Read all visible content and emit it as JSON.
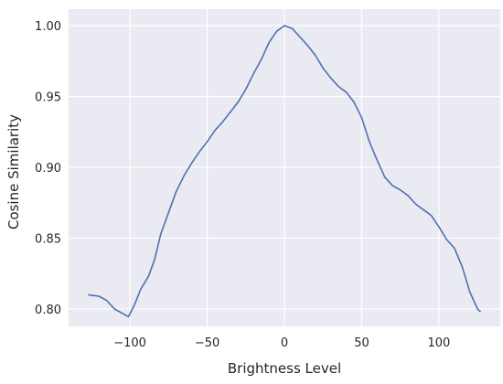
{
  "chart_data": {
    "type": "line",
    "x_label": "Brightness Level",
    "y_label": "Cosine Similarity",
    "x": [
      -127,
      -120,
      -115,
      -110,
      -105,
      -101,
      -97,
      -93,
      -88,
      -84,
      -80,
      -75,
      -70,
      -65,
      -60,
      -55,
      -50,
      -45,
      -40,
      -35,
      -30,
      -25,
      -20,
      -15,
      -10,
      -5,
      0,
      5,
      10,
      15,
      20,
      25,
      30,
      35,
      40,
      45,
      50,
      55,
      60,
      65,
      70,
      75,
      80,
      85,
      90,
      95,
      100,
      105,
      110,
      115,
      120,
      125,
      127
    ],
    "series": [
      {
        "color": "#4c72b0",
        "values": [
          0.81,
          0.809,
          0.806,
          0.8,
          0.797,
          0.7945,
          0.803,
          0.814,
          0.823,
          0.835,
          0.853,
          0.868,
          0.883,
          0.894,
          0.903,
          0.911,
          0.918,
          0.926,
          0.932,
          0.939,
          0.946,
          0.955,
          0.966,
          0.976,
          0.988,
          0.996,
          1.0,
          0.998,
          0.992,
          0.986,
          0.979,
          0.97,
          0.963,
          0.957,
          0.953,
          0.946,
          0.935,
          0.918,
          0.905,
          0.893,
          0.887,
          0.884,
          0.88,
          0.874,
          0.87,
          0.866,
          0.858,
          0.849,
          0.843,
          0.83,
          0.812,
          0.8,
          0.798
        ]
      }
    ],
    "xlim": [
      -139.7,
      139.7
    ],
    "ylim": [
      0.7877,
      1.0116
    ],
    "xticks": [
      {
        "value": -100,
        "label": "−100"
      },
      {
        "value": -50,
        "label": "−50"
      },
      0,
      50,
      100
    ],
    "yticks": [
      {
        "value": 0.8,
        "label": "0.80"
      },
      {
        "value": 0.85,
        "label": "0.85"
      },
      {
        "value": 0.9,
        "label": "0.90"
      },
      {
        "value": 0.95,
        "label": "0.95"
      },
      {
        "value": 1.0,
        "label": "1.00"
      }
    ],
    "grid": true
  }
}
